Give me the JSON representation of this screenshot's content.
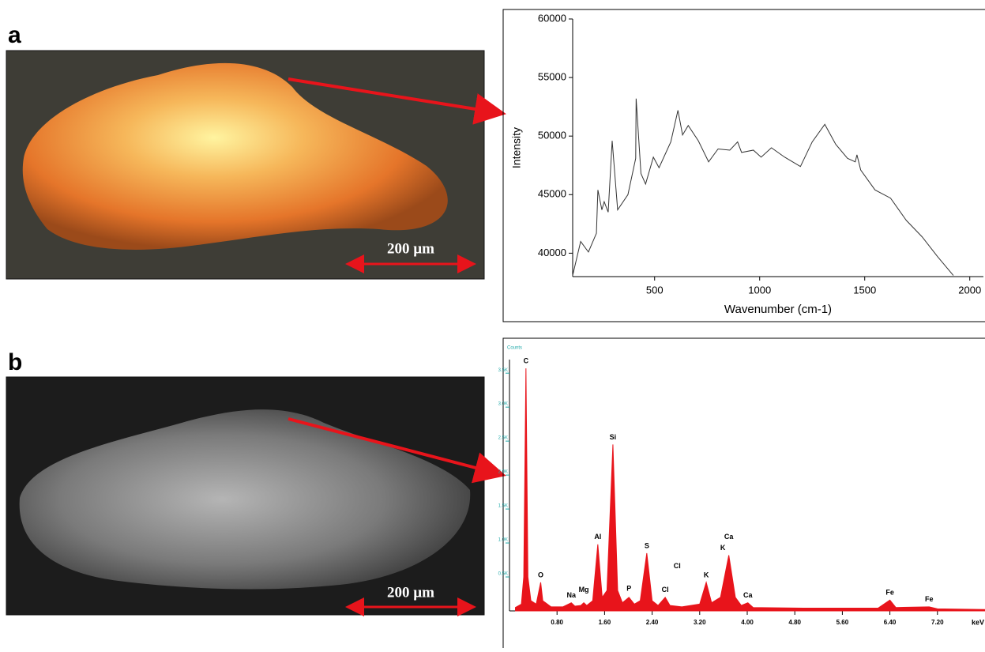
{
  "panel_labels": [
    "a",
    "b"
  ],
  "scale_bars": [
    "200 µm",
    "200 µm"
  ],
  "chart_data": [
    {
      "type": "line",
      "xlabel": "Wavenumber (cm-1)",
      "ylabel": "Intensity",
      "color": "#333333",
      "x": [
        110,
        148,
        185,
        223,
        230,
        249,
        260,
        279,
        298,
        324,
        373,
        410,
        412,
        435,
        457,
        494,
        521,
        577,
        611,
        633,
        660,
        708,
        757,
        802,
        858,
        895,
        914,
        970,
        1007,
        1056,
        1119,
        1194,
        1250,
        1310,
        1362,
        1418,
        1455,
        1463,
        1481,
        1549,
        1623,
        1698,
        1773,
        1847,
        1922
      ],
      "values": [
        38100,
        41000,
        40100,
        41700,
        45400,
        43700,
        44400,
        43500,
        49600,
        43700,
        45000,
        48100,
        53200,
        46800,
        45900,
        48200,
        47300,
        49500,
        52200,
        50100,
        50900,
        49600,
        47800,
        48900,
        48800,
        49500,
        48600,
        48800,
        48200,
        49000,
        48200,
        47400,
        49500,
        51000,
        49300,
        48100,
        47800,
        48400,
        47100,
        45400,
        44700,
        42800,
        41400,
        39700,
        38100
      ],
      "xlim": [
        110,
        2065
      ],
      "ylim": [
        38000,
        60000
      ],
      "xticks": [
        500,
        1000,
        1500,
        2000
      ],
      "yticks": [
        40000,
        45000,
        50000,
        55000,
        60000
      ]
    },
    {
      "type": "area",
      "xlabel": "keV",
      "ylabel": "Counts",
      "color": "#e8141b",
      "x": [
        0.1,
        0.2,
        0.24,
        0.277,
        0.31,
        0.36,
        0.45,
        0.525,
        0.56,
        0.7,
        0.9,
        1.04,
        1.1,
        1.2,
        1.25,
        1.3,
        1.4,
        1.486,
        1.56,
        1.64,
        1.74,
        1.82,
        1.9,
        2.01,
        2.1,
        2.2,
        2.31,
        2.4,
        2.5,
        2.62,
        2.7,
        2.9,
        3.2,
        3.31,
        3.4,
        3.55,
        3.69,
        3.8,
        3.9,
        4.01,
        4.1,
        5.0,
        6.2,
        6.4,
        6.5,
        7.06,
        7.2,
        8.0
      ],
      "values": [
        0.05,
        0.1,
        0.5,
        3.57,
        0.5,
        0.15,
        0.1,
        0.42,
        0.15,
        0.06,
        0.06,
        0.12,
        0.07,
        0.08,
        0.12,
        0.08,
        0.15,
        0.98,
        0.2,
        0.3,
        2.45,
        0.3,
        0.12,
        0.2,
        0.1,
        0.15,
        0.85,
        0.15,
        0.08,
        0.2,
        0.08,
        0.06,
        0.1,
        0.42,
        0.12,
        0.2,
        0.82,
        0.2,
        0.08,
        0.12,
        0.05,
        0.04,
        0.04,
        0.16,
        0.05,
        0.06,
        0.03,
        0.02
      ],
      "xlim": [
        0,
        8.0
      ],
      "ylim": [
        0,
        3.7
      ],
      "xticks": [
        {
          "value": 0.8,
          "label": "0.80"
        },
        {
          "value": 1.6,
          "label": "1.60"
        },
        {
          "value": 2.4,
          "label": "2.40"
        },
        {
          "value": 3.2,
          "label": "3.20"
        },
        {
          "value": 4.0,
          "label": "4.00"
        },
        {
          "value": 4.8,
          "label": "4.80"
        },
        {
          "value": 5.6,
          "label": "5.60"
        },
        {
          "value": 6.4,
          "label": "6.40"
        },
        {
          "value": 7.2,
          "label": "7.20"
        }
      ],
      "yticks": [
        {
          "value": 0.5,
          "label": "0.5K"
        },
        {
          "value": 1.0,
          "label": "1.0K"
        },
        {
          "value": 1.5,
          "label": "1.5K"
        },
        {
          "value": 2.0,
          "label": "2.0K"
        },
        {
          "value": 2.5,
          "label": "2.5K"
        },
        {
          "value": 3.0,
          "label": "3.0K"
        },
        {
          "value": 3.5,
          "label": "3.5K"
        }
      ],
      "annotations": [
        {
          "text": "C",
          "x": 0.277,
          "y": 3.57
        },
        {
          "text": "O",
          "x": 0.525,
          "y": 0.42
        },
        {
          "text": "Na",
          "x": 1.04,
          "y": 0.12
        },
        {
          "text": "Mg",
          "x": 1.25,
          "y": 0.2
        },
        {
          "text": "Al",
          "x": 1.486,
          "y": 0.98
        },
        {
          "text": "Si",
          "x": 1.74,
          "y": 2.45
        },
        {
          "text": "P",
          "x": 2.01,
          "y": 0.22
        },
        {
          "text": "S",
          "x": 2.31,
          "y": 0.85
        },
        {
          "text": "Cl",
          "x": 2.62,
          "y": 0.2
        },
        {
          "text": "Cl",
          "x": 2.82,
          "y": 0.55
        },
        {
          "text": "K",
          "x": 3.31,
          "y": 0.42
        },
        {
          "text": "K",
          "x": 3.59,
          "y": 0.82
        },
        {
          "text": "Ca",
          "x": 3.69,
          "y": 0.98
        },
        {
          "text": "Ca",
          "x": 4.01,
          "y": 0.12
        },
        {
          "text": "Fe",
          "x": 6.4,
          "y": 0.16
        },
        {
          "text": "Fe",
          "x": 7.06,
          "y": 0.06
        }
      ]
    }
  ]
}
